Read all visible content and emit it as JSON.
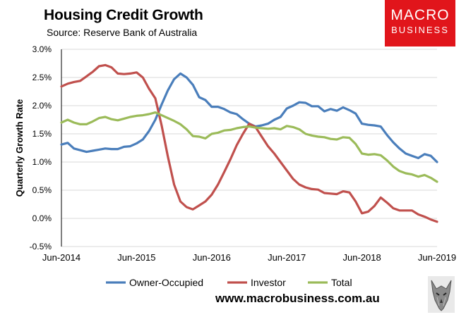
{
  "header": {
    "title": "Housing Credit Growth",
    "subtitle": "Source: Reserve Bank of Australia"
  },
  "logo": {
    "line1": "MACRO",
    "line2": "BUSINESS",
    "color": "#e1151b"
  },
  "footer": {
    "website": "www.macrobusiness.com.au",
    "mascot_icon": "wolf-icon"
  },
  "chart_data": {
    "type": "line",
    "title": "Housing Credit Growth",
    "xlabel": "",
    "ylabel": "Quarterly Growth Rate",
    "ylim": [
      -0.5,
      3.0
    ],
    "xlim": [
      0,
      60
    ],
    "y_ticks": [
      "3.0%",
      "2.5%",
      "2.0%",
      "1.5%",
      "1.0%",
      "0.5%",
      "0.0%",
      "-0.5%"
    ],
    "y_tick_values": [
      3.0,
      2.5,
      2.0,
      1.5,
      1.0,
      0.5,
      0.0,
      -0.5
    ],
    "x_ticks": [
      "Jun-2014",
      "Jun-2015",
      "Jun-2016",
      "Jun-2017",
      "Jun-2018",
      "Jun-2019"
    ],
    "x_tick_positions": [
      0,
      12,
      24,
      36,
      48,
      60
    ],
    "grid": "horizontal",
    "legend_position": "bottom",
    "series": [
      {
        "name": "Owner-Occupied",
        "color": "#4a7ebb",
        "values": [
          1.31,
          1.34,
          1.24,
          1.21,
          1.18,
          1.2,
          1.22,
          1.24,
          1.23,
          1.23,
          1.27,
          1.28,
          1.33,
          1.4,
          1.55,
          1.75,
          2.02,
          2.27,
          2.47,
          2.57,
          2.5,
          2.37,
          2.15,
          2.1,
          1.98,
          1.98,
          1.94,
          1.88,
          1.85,
          1.76,
          1.68,
          1.63,
          1.65,
          1.68,
          1.75,
          1.8,
          1.95,
          2.0,
          2.06,
          2.05,
          1.99,
          1.99,
          1.9,
          1.94,
          1.91,
          1.97,
          1.92,
          1.86,
          1.68,
          1.66,
          1.65,
          1.63,
          1.48,
          1.35,
          1.24,
          1.15,
          1.11,
          1.07,
          1.14,
          1.11,
          1.0
        ]
      },
      {
        "name": "Investor",
        "color": "#c0504d",
        "values": [
          2.34,
          2.39,
          2.42,
          2.44,
          2.52,
          2.6,
          2.7,
          2.72,
          2.68,
          2.57,
          2.56,
          2.57,
          2.59,
          2.5,
          2.3,
          2.13,
          1.65,
          1.1,
          0.6,
          0.3,
          0.2,
          0.16,
          0.23,
          0.3,
          0.42,
          0.6,
          0.82,
          1.05,
          1.3,
          1.5,
          1.68,
          1.62,
          1.45,
          1.28,
          1.15,
          1.0,
          0.85,
          0.7,
          0.6,
          0.55,
          0.52,
          0.51,
          0.45,
          0.44,
          0.43,
          0.48,
          0.46,
          0.3,
          0.09,
          0.12,
          0.22,
          0.37,
          0.28,
          0.18,
          0.14,
          0.14,
          0.14,
          0.07,
          0.03,
          -0.02,
          -0.06
        ]
      },
      {
        "name": "Total",
        "color": "#9bbb59",
        "values": [
          1.7,
          1.75,
          1.7,
          1.67,
          1.67,
          1.72,
          1.78,
          1.8,
          1.76,
          1.74,
          1.77,
          1.8,
          1.82,
          1.83,
          1.85,
          1.88,
          1.83,
          1.78,
          1.73,
          1.67,
          1.58,
          1.46,
          1.45,
          1.42,
          1.5,
          1.52,
          1.56,
          1.57,
          1.6,
          1.62,
          1.63,
          1.61,
          1.6,
          1.59,
          1.6,
          1.58,
          1.64,
          1.62,
          1.58,
          1.5,
          1.47,
          1.45,
          1.44,
          1.41,
          1.4,
          1.44,
          1.43,
          1.32,
          1.15,
          1.13,
          1.14,
          1.12,
          1.03,
          0.92,
          0.84,
          0.8,
          0.78,
          0.74,
          0.77,
          0.72,
          0.65
        ]
      }
    ]
  }
}
